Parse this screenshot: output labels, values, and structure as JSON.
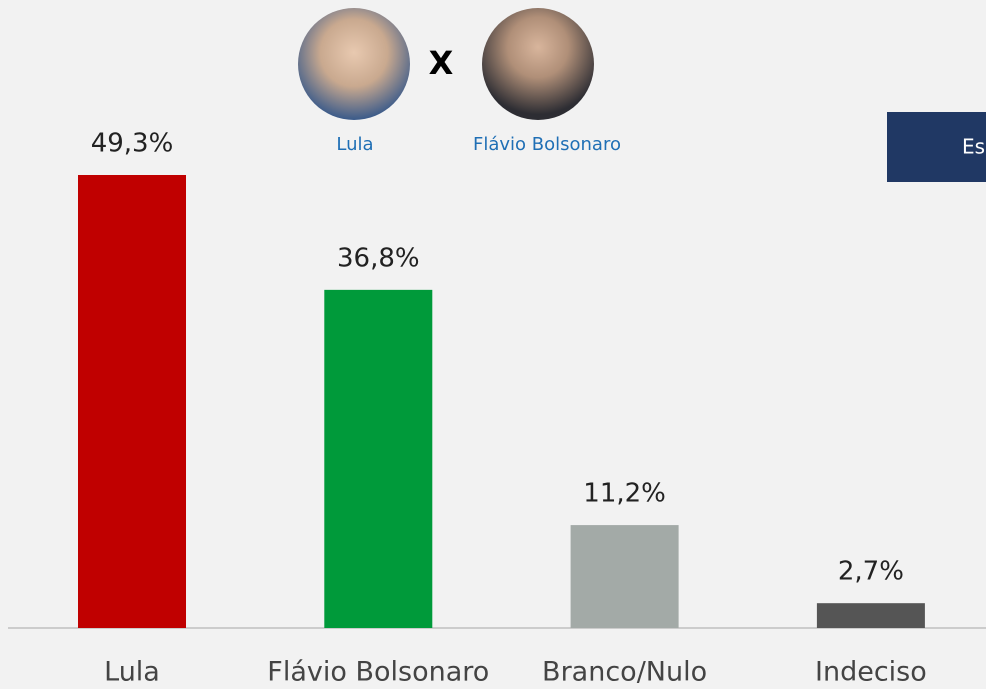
{
  "chart_data": {
    "type": "bar",
    "categories": [
      "Lula",
      "Flávio Bolsonaro",
      "Branco/Nulo",
      "Indeciso"
    ],
    "values": [
      49.3,
      36.8,
      11.2,
      2.7
    ],
    "value_labels": [
      "49,3%",
      "36,8%",
      "11,2%",
      "2,7%"
    ],
    "colors": [
      "#c00000",
      "#009a3a",
      "#a3aaa7",
      "#555555"
    ]
  },
  "header": {
    "candidates": [
      "Lula",
      "Flávio Bolsonaro"
    ],
    "versus": "X",
    "button": "Es"
  }
}
